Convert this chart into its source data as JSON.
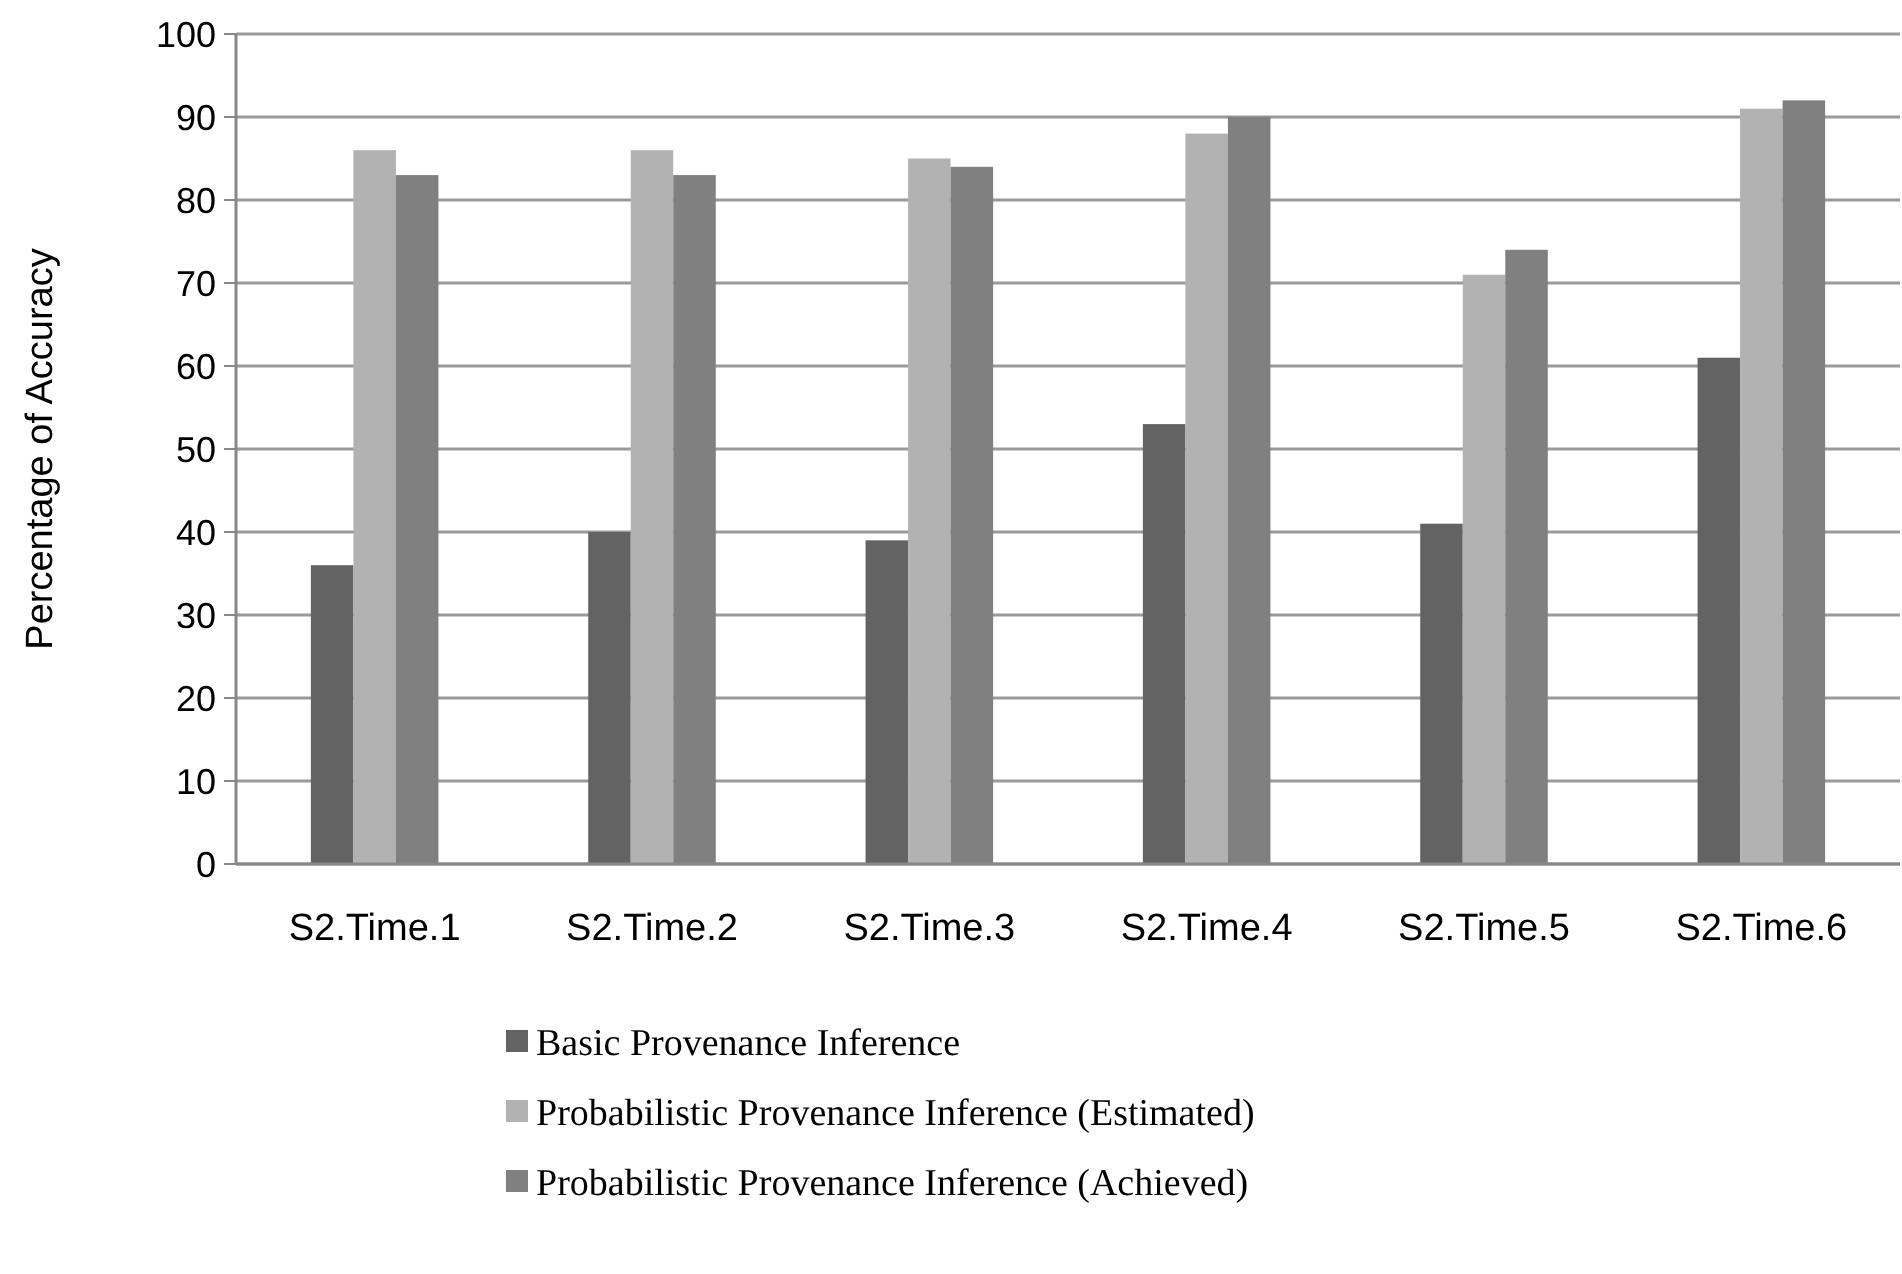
{
  "chart_data": {
    "type": "bar",
    "ylabel": "Percentage of Accuracy",
    "categories": [
      "S2.Time.1",
      "S2.Time.2",
      "S2.Time.3",
      "S2.Time.4",
      "S2.Time.5",
      "S2.Time.6"
    ],
    "series": [
      {
        "name": "Basic Provenance Inference",
        "color": "#636363",
        "values": [
          36,
          40,
          39,
          53,
          41,
          61
        ]
      },
      {
        "name": "Probabilistic Provenance Inference (Estimated)",
        "color": "#b2b2b2",
        "values": [
          86,
          86,
          85,
          88,
          71,
          91
        ]
      },
      {
        "name": "Probabilistic Provenance Inference (Achieved)",
        "color": "#808080",
        "values": [
          83,
          83,
          84,
          90,
          74,
          92
        ]
      }
    ],
    "ylim": [
      0,
      100
    ],
    "yticks": [
      0,
      10,
      20,
      30,
      40,
      50,
      60,
      70,
      80,
      90,
      100
    ],
    "grid": "y",
    "legend": "bottom"
  }
}
